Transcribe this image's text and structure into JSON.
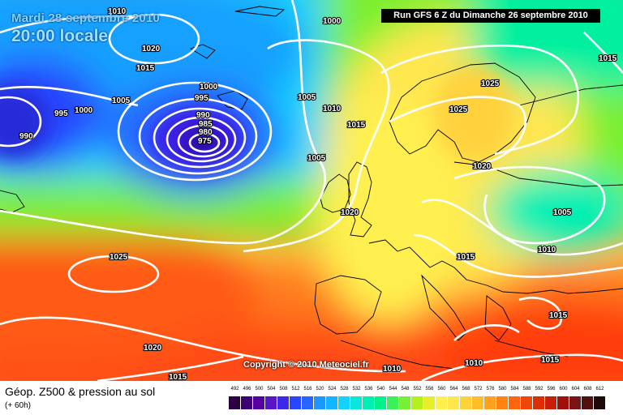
{
  "header": {
    "date": "Mardi 28 septembre 2010",
    "time": "20:00 locale",
    "run": "Run GFS 6 Z du Dimanche 26 septembre 2010"
  },
  "map": {
    "copyright": "Copyright © 2010 Meteociel.fr",
    "pressure_labels": [
      "1010",
      "1000",
      "1020",
      "1015",
      "1005",
      "995",
      "1000",
      "990",
      "1000",
      "995",
      "990",
      "985",
      "980",
      "975",
      "1005",
      "1010",
      "1015",
      "1005",
      "1025",
      "1025",
      "1020",
      "1005",
      "1015",
      "1010",
      "1025",
      "1020",
      "1015",
      "1015",
      "1010",
      "1010",
      "1015",
      "1020",
      "1015"
    ],
    "low_center": "975",
    "colors": {
      "isobar": "#ffffff",
      "coastline": "#000000"
    }
  },
  "legend": {
    "title": "Géop. Z500 & pression au sol",
    "lead": "(+ 60h)",
    "scale_values": [
      "492",
      "496",
      "500",
      "504",
      "508",
      "512",
      "516",
      "520",
      "524",
      "528",
      "532",
      "536",
      "540",
      "544",
      "548",
      "552",
      "556",
      "560",
      "564",
      "568",
      "572",
      "576",
      "580",
      "584",
      "588",
      "592",
      "596",
      "600",
      "604",
      "608",
      "612"
    ],
    "scale_colors": [
      "#2b0040",
      "#3d0070",
      "#55009f",
      "#5a14c8",
      "#3c28e6",
      "#2846ff",
      "#2864ff",
      "#1e96ff",
      "#14b4ff",
      "#14d2ff",
      "#0ae6dc",
      "#00f0b4",
      "#00f08c",
      "#3cf05a",
      "#78f032",
      "#b4f01e",
      "#e6f028",
      "#fff050",
      "#ffe650",
      "#ffd23c",
      "#ffbe28",
      "#ffa01e",
      "#ff8214",
      "#ff640f",
      "#f0460a",
      "#dc2d05",
      "#c81e05",
      "#a00f0a",
      "#781414",
      "#501010",
      "#200808"
    ]
  }
}
